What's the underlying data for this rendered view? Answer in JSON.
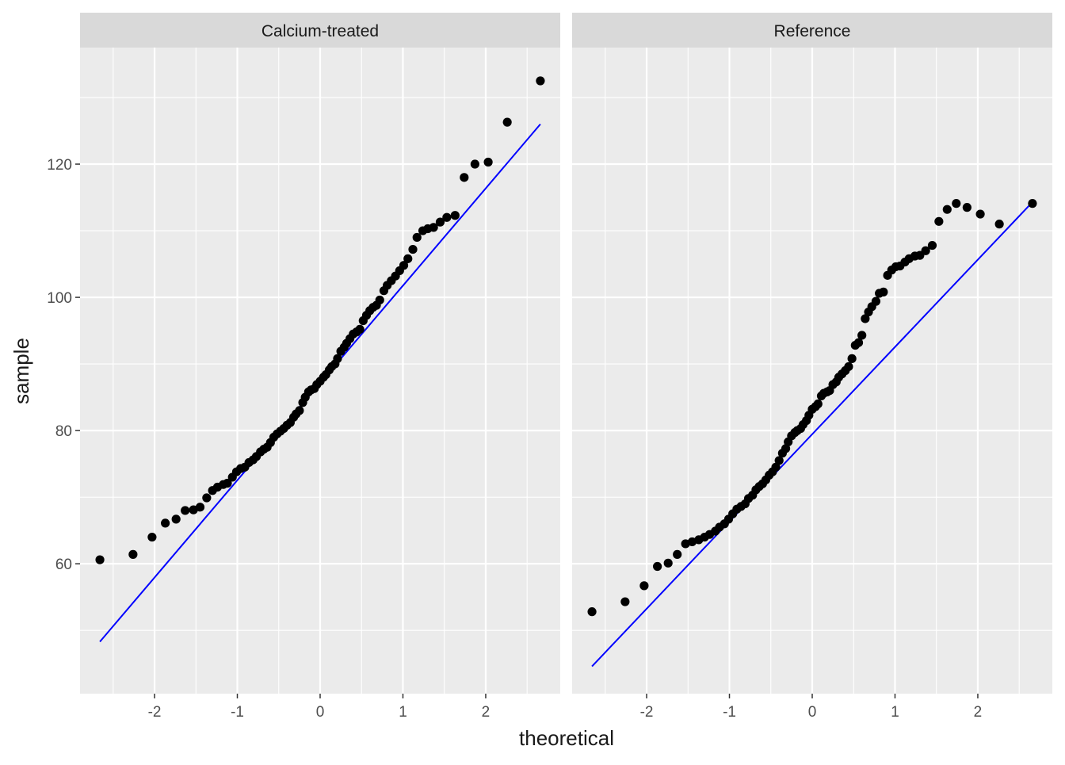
{
  "chart_data": {
    "type": "scatter",
    "xlabel": "theoretical",
    "ylabel": "sample",
    "xlim": [
      -2.9,
      2.9
    ],
    "ylim": [
      40.5,
      137.5
    ],
    "x_ticks": [
      -2,
      -1,
      0,
      1,
      2
    ],
    "x_tick_labels": [
      "-2",
      "-1",
      "0",
      "1",
      "2"
    ],
    "x_minor_ticks": [
      -2.5,
      -1.5,
      -0.5,
      0.5,
      1.5,
      2.5
    ],
    "y_ticks": [
      60,
      80,
      100,
      120
    ],
    "y_tick_labels": [
      "60",
      "80",
      "100",
      "120"
    ],
    "y_minor_ticks": [
      50,
      70,
      90,
      110,
      130
    ],
    "grid": true,
    "colors": {
      "panel_bg": "#EBEBEB",
      "strip_bg": "#D9D9D9",
      "grid": "#FFFFFF",
      "point": "#000000",
      "line": "#0000FF",
      "text": "#1A1A1A",
      "tick_text": "#4D4D4D"
    },
    "panels": [
      {
        "strip": "Calcium-treated",
        "line": {
          "x": [
            -2.66,
            2.66
          ],
          "y": [
            48.3,
            126.0
          ]
        },
        "points": {
          "x": [
            -2.66,
            -2.26,
            -2.03,
            -1.87,
            -1.74,
            -1.63,
            -1.53,
            -1.45,
            -1.37,
            -1.3,
            -1.24,
            -1.17,
            -1.12,
            -1.06,
            -1.01,
            -0.96,
            -0.91,
            -0.86,
            -0.81,
            -0.77,
            -0.72,
            -0.68,
            -0.64,
            -0.6,
            -0.56,
            -0.52,
            -0.48,
            -0.44,
            -0.4,
            -0.36,
            -0.32,
            -0.29,
            -0.25,
            -0.21,
            -0.18,
            -0.14,
            -0.11,
            -0.07,
            -0.04,
            0.0,
            0.04,
            0.07,
            0.11,
            0.14,
            0.18,
            0.21,
            0.25,
            0.29,
            0.32,
            0.36,
            0.4,
            0.44,
            0.48,
            0.52,
            0.56,
            0.6,
            0.64,
            0.68,
            0.72,
            0.77,
            0.81,
            0.86,
            0.91,
            0.96,
            1.01,
            1.06,
            1.12,
            1.17,
            1.24,
            1.3,
            1.37,
            1.45,
            1.53,
            1.63,
            1.74,
            1.87,
            2.03,
            2.26,
            2.66
          ],
          "y": [
            60.6,
            61.4,
            64.0,
            66.1,
            66.7,
            68.0,
            68.1,
            68.5,
            69.9,
            71.0,
            71.5,
            71.9,
            72.1,
            73.0,
            73.8,
            74.3,
            74.5,
            75.2,
            75.6,
            76.1,
            76.8,
            77.2,
            77.5,
            78.2,
            79.0,
            79.5,
            79.9,
            80.3,
            80.8,
            81.2,
            82.0,
            82.5,
            83.0,
            84.2,
            85.0,
            85.8,
            86.1,
            86.3,
            86.9,
            87.4,
            88.0,
            88.4,
            89.1,
            89.6,
            90.0,
            90.8,
            91.9,
            92.5,
            93.1,
            93.8,
            94.5,
            94.8,
            95.2,
            96.5,
            97.3,
            98.0,
            98.5,
            98.8,
            99.6,
            101.0,
            101.8,
            102.5,
            103.2,
            104.0,
            104.8,
            105.8,
            107.2,
            109.0,
            110.0,
            110.3,
            110.5,
            111.3,
            112.0,
            112.3,
            118.0,
            120.0,
            120.3,
            126.3,
            132.5
          ]
        }
      },
      {
        "strip": "Reference",
        "line": {
          "x": [
            -2.66,
            2.66
          ],
          "y": [
            44.6,
            114.3
          ]
        },
        "points": {
          "x": [
            -2.66,
            -2.26,
            -2.03,
            -1.87,
            -1.74,
            -1.63,
            -1.53,
            -1.45,
            -1.37,
            -1.3,
            -1.24,
            -1.17,
            -1.12,
            -1.06,
            -1.01,
            -0.96,
            -0.91,
            -0.86,
            -0.81,
            -0.77,
            -0.72,
            -0.68,
            -0.64,
            -0.6,
            -0.56,
            -0.52,
            -0.48,
            -0.44,
            -0.4,
            -0.36,
            -0.32,
            -0.29,
            -0.25,
            -0.21,
            -0.18,
            -0.14,
            -0.11,
            -0.07,
            -0.04,
            0.0,
            0.04,
            0.07,
            0.11,
            0.14,
            0.18,
            0.21,
            0.25,
            0.29,
            0.32,
            0.36,
            0.4,
            0.44,
            0.48,
            0.52,
            0.56,
            0.6,
            0.64,
            0.68,
            0.72,
            0.77,
            0.81,
            0.86,
            0.91,
            0.96,
            1.01,
            1.06,
            1.12,
            1.17,
            1.24,
            1.3,
            1.37,
            1.45,
            1.53,
            1.63,
            1.74,
            1.87,
            2.03,
            2.26,
            2.66
          ],
          "y": [
            52.8,
            54.3,
            56.7,
            59.6,
            60.1,
            61.4,
            63.0,
            63.3,
            63.6,
            64.0,
            64.4,
            64.9,
            65.5,
            66.0,
            66.7,
            67.5,
            68.2,
            68.6,
            69.0,
            69.8,
            70.3,
            71.1,
            71.6,
            72.0,
            72.6,
            73.3,
            73.8,
            74.5,
            75.5,
            76.6,
            77.3,
            78.3,
            79.2,
            79.7,
            80.0,
            80.3,
            80.9,
            81.5,
            82.3,
            83.2,
            83.6,
            84.0,
            85.2,
            85.6,
            85.8,
            86.0,
            86.9,
            87.3,
            88.0,
            88.5,
            89.0,
            89.6,
            90.8,
            92.8,
            93.2,
            94.3,
            96.8,
            97.8,
            98.6,
            99.4,
            100.6,
            100.8,
            103.3,
            104.1,
            104.6,
            104.7,
            105.3,
            105.8,
            106.2,
            106.3,
            107.0,
            107.8,
            111.4,
            113.2,
            114.1,
            113.5,
            112.5,
            111.0,
            114.1
          ]
        }
      }
    ]
  }
}
